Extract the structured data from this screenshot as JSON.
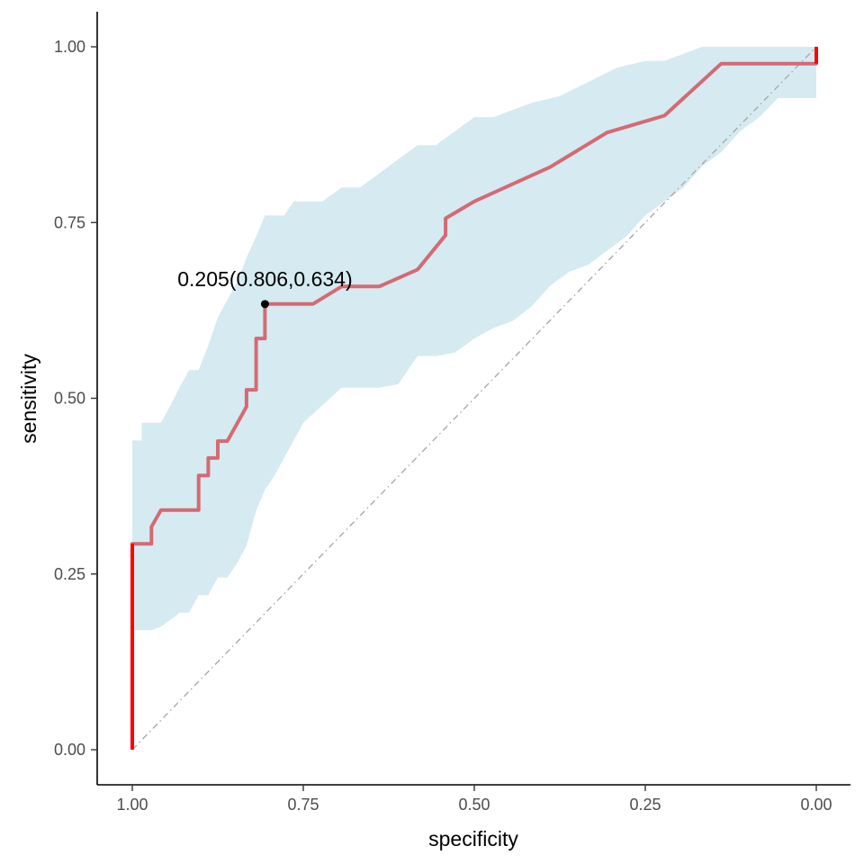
{
  "chart_data": {
    "type": "line",
    "title": "",
    "xlabel": "specificity",
    "ylabel": "sensitivity",
    "x_reversed": true,
    "xlim": [
      1.05,
      -0.05
    ],
    "ylim": [
      -0.05,
      1.05
    ],
    "grid": false,
    "legend": "none",
    "x_ticks": [
      {
        "value": 1.0,
        "label": "1.00"
      },
      {
        "value": 0.75,
        "label": "0.75"
      },
      {
        "value": 0.5,
        "label": "0.50"
      },
      {
        "value": 0.25,
        "label": "0.25"
      },
      {
        "value": 0.0,
        "label": "0.00"
      }
    ],
    "y_ticks": [
      {
        "value": 0.0,
        "label": "0.00"
      },
      {
        "value": 0.25,
        "label": "0.25"
      },
      {
        "value": 0.5,
        "label": "0.50"
      },
      {
        "value": 0.75,
        "label": "0.75"
      },
      {
        "value": 1.0,
        "label": "1.00"
      }
    ],
    "colors": {
      "roc_curve": "#d46a73",
      "roc_ends": "#ff0000",
      "ci_band": "#d6eaf1",
      "reference": "#aaaaaa",
      "threshold_point": "#000000"
    },
    "roc_curve": [
      [
        1.0,
        0.0
      ],
      [
        1.0,
        0.293
      ],
      [
        0.972,
        0.293
      ],
      [
        0.972,
        0.317
      ],
      [
        0.958,
        0.341
      ],
      [
        0.903,
        0.341
      ],
      [
        0.903,
        0.39
      ],
      [
        0.889,
        0.39
      ],
      [
        0.889,
        0.415
      ],
      [
        0.875,
        0.415
      ],
      [
        0.875,
        0.439
      ],
      [
        0.861,
        0.439
      ],
      [
        0.833,
        0.488
      ],
      [
        0.833,
        0.512
      ],
      [
        0.819,
        0.512
      ],
      [
        0.819,
        0.585
      ],
      [
        0.806,
        0.585
      ],
      [
        0.806,
        0.634
      ],
      [
        0.736,
        0.634
      ],
      [
        0.694,
        0.659
      ],
      [
        0.639,
        0.659
      ],
      [
        0.583,
        0.683
      ],
      [
        0.542,
        0.732
      ],
      [
        0.542,
        0.756
      ],
      [
        0.5,
        0.78
      ],
      [
        0.389,
        0.829
      ],
      [
        0.306,
        0.878
      ],
      [
        0.222,
        0.902
      ],
      [
        0.139,
        0.976
      ],
      [
        0.0,
        0.976
      ],
      [
        0.0,
        1.0
      ]
    ],
    "ci_upper": [
      [
        1.0,
        0.44
      ],
      [
        0.986,
        0.44
      ],
      [
        0.986,
        0.465
      ],
      [
        0.958,
        0.465
      ],
      [
        0.944,
        0.49
      ],
      [
        0.931,
        0.515
      ],
      [
        0.917,
        0.54
      ],
      [
        0.903,
        0.54
      ],
      [
        0.889,
        0.575
      ],
      [
        0.875,
        0.615
      ],
      [
        0.847,
        0.665
      ],
      [
        0.833,
        0.7
      ],
      [
        0.819,
        0.73
      ],
      [
        0.806,
        0.76
      ],
      [
        0.778,
        0.76
      ],
      [
        0.764,
        0.78
      ],
      [
        0.75,
        0.78
      ],
      [
        0.722,
        0.78
      ],
      [
        0.694,
        0.8
      ],
      [
        0.667,
        0.8
      ],
      [
        0.639,
        0.82
      ],
      [
        0.611,
        0.84
      ],
      [
        0.583,
        0.86
      ],
      [
        0.556,
        0.86
      ],
      [
        0.528,
        0.88
      ],
      [
        0.5,
        0.9
      ],
      [
        0.472,
        0.9
      ],
      [
        0.417,
        0.92
      ],
      [
        0.375,
        0.93
      ],
      [
        0.333,
        0.95
      ],
      [
        0.292,
        0.97
      ],
      [
        0.25,
        0.98
      ],
      [
        0.222,
        0.98
      ],
      [
        0.194,
        0.99
      ],
      [
        0.167,
        1.0
      ],
      [
        0.0,
        1.0
      ]
    ],
    "ci_lower": [
      [
        0.0,
        0.927
      ],
      [
        0.028,
        0.927
      ],
      [
        0.056,
        0.927
      ],
      [
        0.083,
        0.9
      ],
      [
        0.111,
        0.88
      ],
      [
        0.139,
        0.85
      ],
      [
        0.167,
        0.83
      ],
      [
        0.194,
        0.8
      ],
      [
        0.222,
        0.78
      ],
      [
        0.25,
        0.76
      ],
      [
        0.278,
        0.73
      ],
      [
        0.306,
        0.71
      ],
      [
        0.333,
        0.69
      ],
      [
        0.361,
        0.68
      ],
      [
        0.389,
        0.66
      ],
      [
        0.417,
        0.63
      ],
      [
        0.444,
        0.61
      ],
      [
        0.472,
        0.6
      ],
      [
        0.5,
        0.585
      ],
      [
        0.528,
        0.565
      ],
      [
        0.556,
        0.56
      ],
      [
        0.583,
        0.56
      ],
      [
        0.611,
        0.52
      ],
      [
        0.639,
        0.515
      ],
      [
        0.694,
        0.515
      ],
      [
        0.722,
        0.49
      ],
      [
        0.75,
        0.465
      ],
      [
        0.778,
        0.415
      ],
      [
        0.792,
        0.39
      ],
      [
        0.806,
        0.37
      ],
      [
        0.819,
        0.34
      ],
      [
        0.833,
        0.29
      ],
      [
        0.847,
        0.265
      ],
      [
        0.861,
        0.245
      ],
      [
        0.875,
        0.245
      ],
      [
        0.889,
        0.22
      ],
      [
        0.903,
        0.22
      ],
      [
        0.917,
        0.195
      ],
      [
        0.931,
        0.195
      ],
      [
        0.944,
        0.185
      ],
      [
        0.958,
        0.175
      ],
      [
        0.972,
        0.17
      ],
      [
        1.0,
        0.17
      ]
    ],
    "threshold_point": {
      "x": 0.806,
      "y": 0.634,
      "label": "0.205(0.806,0.634)"
    }
  }
}
